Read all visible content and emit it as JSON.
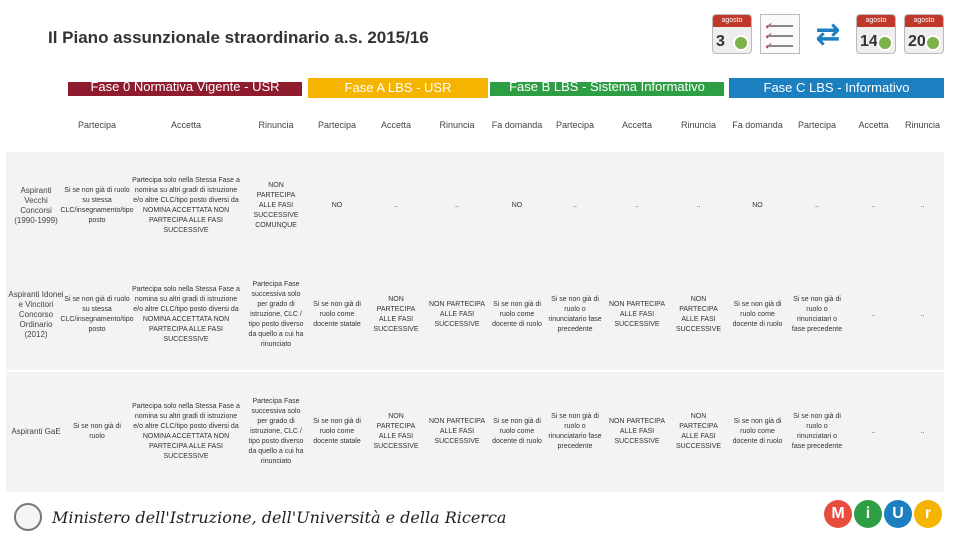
{
  "title": "Il Piano assunzionale straordinario a.s. 2015/16",
  "top_icons": [
    {
      "name": "calendar-clock-icon",
      "month": "agosto",
      "day": "3"
    },
    {
      "name": "checklist-icon"
    },
    {
      "name": "swap-arrows-icon"
    },
    {
      "name": "calendar-clock-icon",
      "month": "agosto",
      "day": "14"
    },
    {
      "name": "calendar-clock-icon",
      "month": "agosto",
      "day": "20"
    }
  ],
  "phases": [
    {
      "label": "Fase 0 Normativa Vigente - USR",
      "color": "#8e1b2e"
    },
    {
      "label": "Fase A LBS - USR",
      "color": "#f4b400"
    },
    {
      "label": "Fase B LBS - Sistema Informativo",
      "color": "#2e9e45"
    },
    {
      "label": "Fase C LBS - Informativo",
      "color": "#1b7fc0"
    }
  ],
  "columns": [
    "",
    "Partecipa",
    "Accetta",
    "Rinuncia",
    "Partecipa",
    "Accetta",
    "Rinuncia",
    "Fa domanda",
    "Partecipa",
    "Accetta",
    "Rinuncia",
    "Fa domanda",
    "Partecipa",
    "Accetta",
    "Rinuncia"
  ],
  "rows": [
    {
      "label": "Aspiranti Vecchi Concorsi (1990-1999)",
      "cells": [
        "Si se non già di ruolo su stessa CLC/insegnamento/tipo posto",
        "Partecipa solo nella Stessa Fase a nomina su altri gradi di istruzione e/o altre CLC/tipo posto diversi da NOMINA ACCETTATA NON PARTECIPA ALLE FASI SUCCESSIVE",
        "NON PARTECIPA ALLE FASI SUCCESSIVE COMUNQUE",
        "NO",
        "..",
        "..",
        "NO",
        "..",
        "..",
        "..",
        "NO",
        "..",
        "..",
        ".."
      ]
    },
    {
      "label": "Aspiranti Idonei e Vincitori Concorso Ordinario (2012)",
      "cells": [
        "Si se non già di ruolo su stessa CLC/insegnamento/tipo posto",
        "Partecipa solo nella Stessa Fase a nomina su altri gradi di istruzione e/o altre CLC/tipo posto diversi da NOMINA ACCETTATA NON PARTECIPA ALLE FASI SUCCESSIVE",
        "Partecipa Fase successiva solo per grado di istruzione, CLC / tipo posto diverso da quello a cui ha rinunciato",
        "Si se non già di ruolo come docente statale",
        "NON PARTECIPA ALLE FASI SUCCESSIVE",
        "NON PARTECIPA ALLE FASI SUCCESSIVE",
        "Si se non già di ruolo come docente di ruolo",
        "Si se non già di ruolo o rinunciatario fase precedente",
        "NON PARTECIPA ALLE FASI SUCCESSIVE",
        "NON PARTECIPA ALLE FASI SUCCESSIVE",
        "Si se non già di ruolo come docente di ruolo",
        "Si se non già di ruolo o rinunciatari o fase precedente",
        "..",
        ".."
      ]
    },
    {
      "label": "Aspiranti GaE",
      "cells": [
        "Si se non già di ruolo",
        "Partecipa solo nella Stessa Fase a nomina su altri gradi di istruzione e/o altre CLC/tipo posto diversi da NOMINA ACCETTATA NON PARTECIPA ALLE FASI SUCCESSIVE",
        "Partecipa Fase successiva solo per grado di istruzione, CLC / tipo posto diverso da quello a cui ha rinunciato",
        "Si se non già di ruolo come docente statale",
        "NON PARTECIPA ALLE FASI SUCCESSIVE",
        "NON PARTECIPA ALLE FASI SUCCESSIVE",
        "Si se non già di ruolo come docente di ruolo",
        "Si se non già di ruolo o rinunciatario fase precedente",
        "NON PARTECIPA ALLE FASI SUCCESSIVE",
        "NON PARTECIPA ALLE FASI SUCCESSIVE",
        "Si se non già di ruolo come docente di ruolo",
        "Si se non già di ruolo o rinunciatari o fase precedente",
        "..",
        ".."
      ]
    }
  ],
  "footer": {
    "ministry": "Ministero dell'Istruzione, dell'Università e della Ricerca",
    "logo_letters": [
      "M",
      "i",
      "U",
      "r"
    ],
    "logo_colors": [
      "#e84c3d",
      "#2e9e45",
      "#1b7fc0",
      "#f4b400"
    ]
  }
}
